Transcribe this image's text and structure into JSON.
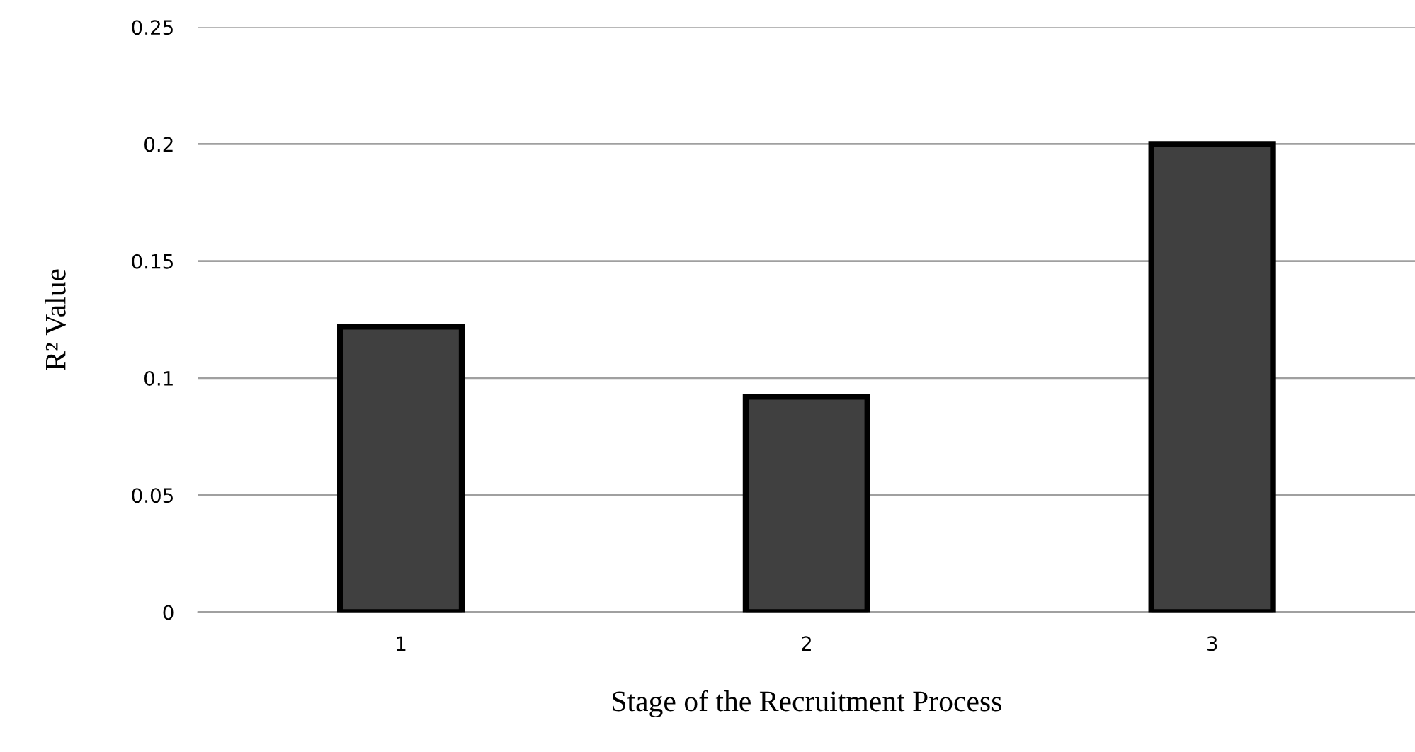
{
  "chart_data": {
    "type": "bar",
    "xlabel": "Stage of the Recruitment Process",
    "ylabel": "R² Value",
    "categories": [
      "1",
      "2",
      "3"
    ],
    "values": [
      0.122,
      0.092,
      0.2
    ],
    "color": "#404040",
    "ylim": [
      0,
      0.25
    ],
    "yticks": [
      0,
      0.05,
      0.1,
      0.15,
      0.2,
      0.25
    ],
    "grid": "y"
  }
}
